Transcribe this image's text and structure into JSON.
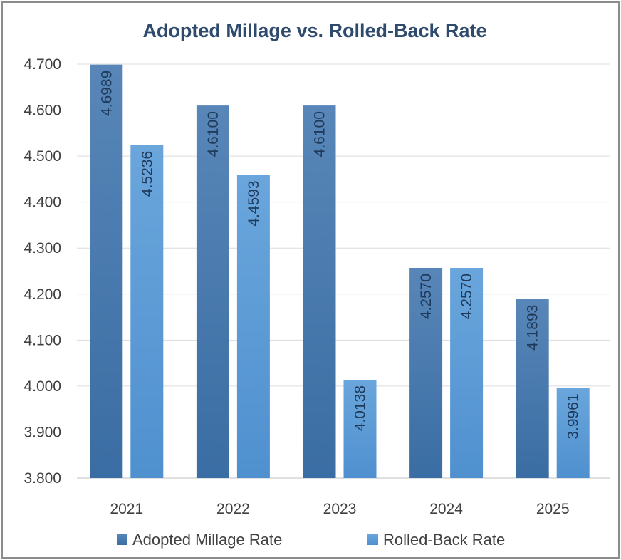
{
  "chart_data": {
    "type": "bar",
    "title": "Adopted Millage vs. Rolled-Back Rate",
    "xlabel": "",
    "ylabel": "",
    "categories": [
      "2021",
      "2022",
      "2023",
      "2024",
      "2025"
    ],
    "series": [
      {
        "name": "Adopted Millage Rate",
        "values": [
          4.6989,
          4.61,
          4.61,
          4.257,
          4.1893
        ],
        "labels": [
          "4.6989",
          "4.6100",
          "4.6100",
          "4.2570",
          "4.1893"
        ],
        "color": "#4a7cb0"
      },
      {
        "name": "Rolled-Back Rate",
        "values": [
          4.5236,
          4.4593,
          4.0138,
          4.257,
          3.9961
        ],
        "labels": [
          "4.5236",
          "4.4593",
          "4.0138",
          "4.2570",
          "3.9961"
        ],
        "color": "#5b9bd5"
      }
    ],
    "ylim": [
      3.8,
      4.7
    ],
    "yticks": [
      "3.800",
      "3.900",
      "4.000",
      "4.100",
      "4.200",
      "4.300",
      "4.400",
      "4.500",
      "4.600",
      "4.700"
    ],
    "grid": true,
    "legend_position": "bottom",
    "data_labels": "inside-end-rotated"
  }
}
